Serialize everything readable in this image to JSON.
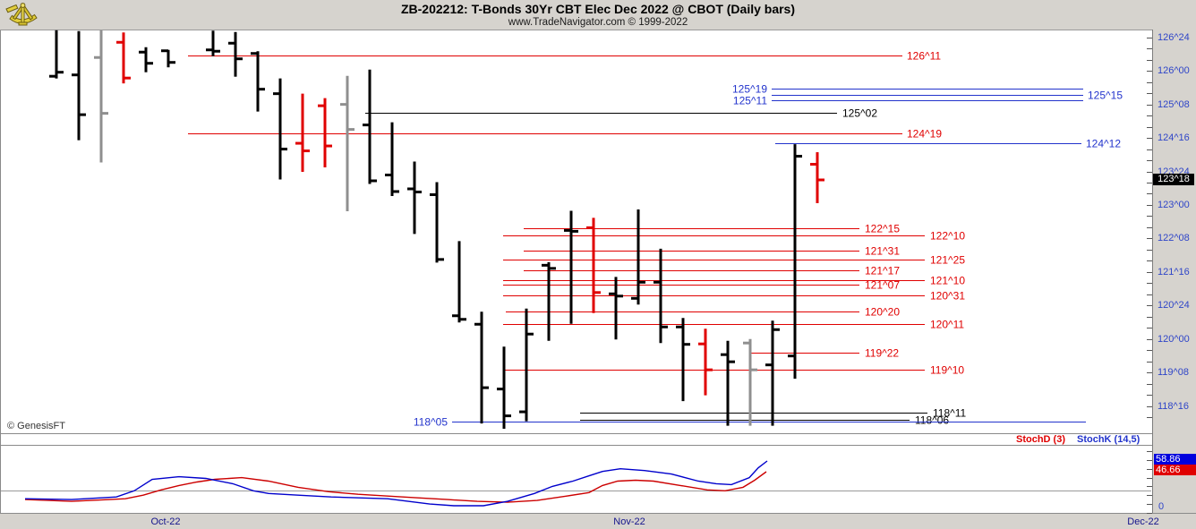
{
  "header": {
    "title": "ZB-202212:  T-Bonds 30Yr CBT Elec Dec 2022 @ CBOT  (Daily bars)",
    "subtitle": "www.TradeNavigator.com © 1999-2022"
  },
  "copyright": "© GenesisFT",
  "current_price_label": "123^18",
  "stoch": {
    "d_label": "StochD (3)",
    "k_label": "StochK (14,5)",
    "k_value": "58.86",
    "d_value": "46.66",
    "zero": "0"
  },
  "colors": {
    "red": "#e00000",
    "blue": "#2233cc",
    "black": "#000000",
    "gray_bar": "#8f8f8f",
    "axis_text": "#2f45c8",
    "date_text": "#14148c",
    "stoch_k": "#0000cc",
    "stoch_d": "#cc0000",
    "k_box_bg": "#0000dd",
    "d_box_bg": "#e00000",
    "chrome": "#d6d3ce",
    "panel": "#ffffff",
    "border": "#808080",
    "current_price_bg": "#000000",
    "gridline": "#9a9a9a"
  },
  "chart_data": {
    "type": "ohlc",
    "title": "ZB-202212:  T-Bonds 30Yr CBT Elec Dec 2022 @ CBOT  (Daily bars)",
    "price_unit": "points and 32nds (e.g. 123^18 = 123 + 18/32)",
    "price_axis_labels": [
      [
        "126^24",
        126.75
      ],
      [
        "126^00",
        126.0
      ],
      [
        "125^08",
        125.25
      ],
      [
        "124^16",
        124.5
      ],
      [
        "123^24",
        123.75
      ],
      [
        "123^00",
        123.0
      ],
      [
        "122^08",
        122.25
      ],
      [
        "121^16",
        121.5
      ],
      [
        "120^24",
        120.75
      ],
      [
        "120^00",
        120.0
      ],
      [
        "119^08",
        119.25
      ],
      [
        "118^16",
        118.5
      ]
    ],
    "bars_format": [
      "x",
      "open",
      "high",
      "low",
      "close",
      "color(k=black,r=red,g=gray)"
    ],
    "bars": [
      [
        63,
        125.88,
        126.91,
        125.83,
        125.97,
        "k"
      ],
      [
        88,
        125.91,
        126.89,
        124.45,
        125.02,
        "k"
      ],
      [
        113,
        126.3,
        126.91,
        123.95,
        125.05,
        "g"
      ],
      [
        138,
        126.64,
        126.86,
        125.72,
        125.84,
        "r"
      ],
      [
        163,
        126.42,
        126.53,
        125.97,
        126.17,
        "k"
      ],
      [
        188,
        126.45,
        126.47,
        126.08,
        126.19,
        "k"
      ],
      [
        238,
        126.47,
        126.9,
        126.33,
        126.44,
        "k"
      ],
      [
        263,
        126.62,
        126.87,
        125.87,
        126.27,
        "k"
      ],
      [
        288,
        126.39,
        126.44,
        125.09,
        125.59,
        "k"
      ],
      [
        313,
        125.49,
        125.83,
        123.57,
        124.25,
        "k"
      ],
      [
        338,
        124.38,
        125.49,
        123.74,
        124.21,
        "r"
      ],
      [
        363,
        125.22,
        125.39,
        123.84,
        124.32,
        "r"
      ],
      [
        388,
        125.25,
        125.89,
        122.86,
        124.69,
        "g"
      ],
      [
        413,
        124.79,
        126.03,
        123.47,
        123.54,
        "k"
      ],
      [
        438,
        123.67,
        124.85,
        123.2,
        123.3,
        "k"
      ],
      [
        463,
        123.36,
        123.97,
        122.35,
        123.29,
        "k"
      ],
      [
        488,
        123.23,
        123.51,
        121.71,
        121.78,
        "k"
      ],
      [
        513,
        120.52,
        122.19,
        120.37,
        120.44,
        "k"
      ],
      [
        538,
        120.33,
        120.61,
        118.11,
        118.91,
        "k"
      ],
      [
        563,
        118.88,
        119.83,
        117.99,
        118.28,
        "k"
      ],
      [
        588,
        118.37,
        120.68,
        118.16,
        120.11,
        "k"
      ],
      [
        613,
        121.65,
        121.72,
        119.96,
        121.58,
        "k"
      ],
      [
        638,
        122.43,
        122.87,
        120.34,
        122.41,
        "k"
      ],
      [
        663,
        122.49,
        122.71,
        120.58,
        121.04,
        "r"
      ],
      [
        688,
        121.01,
        121.39,
        119.99,
        120.96,
        "k"
      ],
      [
        713,
        120.91,
        122.9,
        120.77,
        121.27,
        "k"
      ],
      [
        738,
        121.27,
        122.02,
        119.91,
        120.27,
        "k"
      ],
      [
        763,
        120.27,
        120.47,
        118.61,
        119.88,
        "k"
      ],
      [
        788,
        119.89,
        120.23,
        118.74,
        119.31,
        "r"
      ],
      [
        813,
        119.65,
        119.96,
        118.06,
        119.49,
        "k"
      ],
      [
        838,
        119.91,
        120.0,
        118.06,
        119.31,
        "g"
      ],
      [
        863,
        119.42,
        120.41,
        118.06,
        120.21,
        "k"
      ],
      [
        888,
        119.62,
        124.36,
        119.11,
        124.09,
        "k"
      ],
      [
        913,
        123.91,
        124.18,
        123.04,
        123.56,
        "r"
      ]
    ],
    "levels_format": [
      "label",
      "value",
      "color(r|b|k)",
      "x1",
      "x2",
      "label_x",
      "anchor"
    ],
    "levels": [
      [
        "126^11",
        126.34375,
        "r",
        210,
        1008,
        1013,
        "start"
      ],
      [
        "125^19",
        125.59375,
        "b",
        862,
        1210,
        857,
        "end"
      ],
      [
        "125^15",
        125.46875,
        "b",
        862,
        1210,
        1215,
        "start"
      ],
      [
        "125^11",
        125.34375,
        "b",
        862,
        1210,
        857,
        "end"
      ],
      [
        "125^02",
        125.0625,
        "k",
        408,
        935,
        941,
        "start"
      ],
      [
        "124^19",
        124.59375,
        "r",
        210,
        1008,
        1013,
        "start"
      ],
      [
        "124^12",
        124.375,
        "b",
        866,
        1208,
        1213,
        "start"
      ],
      [
        "122^15",
        122.46875,
        "r",
        585,
        960,
        966,
        "start"
      ],
      [
        "122^10",
        122.3125,
        "r",
        562,
        1033,
        1039,
        "start"
      ],
      [
        "121^31",
        121.96875,
        "r",
        585,
        960,
        966,
        "start"
      ],
      [
        "121^25",
        121.78125,
        "r",
        562,
        1033,
        1039,
        "start"
      ],
      [
        "121^17",
        121.53125,
        "r",
        585,
        960,
        966,
        "start"
      ],
      [
        "121^10",
        121.3125,
        "r",
        562,
        1033,
        1039,
        "start"
      ],
      [
        "121^07",
        121.21875,
        "r",
        562,
        960,
        966,
        "start"
      ],
      [
        "120^31",
        120.96875,
        "r",
        562,
        1033,
        1039,
        "start"
      ],
      [
        "120^20",
        120.625,
        "r",
        565,
        960,
        966,
        "start"
      ],
      [
        "120^11",
        120.34375,
        "r",
        562,
        1033,
        1039,
        "start"
      ],
      [
        "119^22",
        119.6875,
        "r",
        837,
        960,
        966,
        "start"
      ],
      [
        "119^10",
        119.3125,
        "r",
        562,
        1033,
        1039,
        "start"
      ],
      [
        "118^11",
        118.34375,
        "k",
        648,
        1036,
        1042,
        "start"
      ],
      [
        "118^06",
        118.1875,
        "k",
        648,
        1016,
        1022,
        "start"
      ],
      [
        "118^05",
        118.15625,
        "b",
        505,
        1213,
        500,
        "end"
      ]
    ],
    "current_price": {
      "label": "123^18",
      "value": 123.5625
    },
    "stochastic": {
      "range": [
        0,
        100
      ],
      "gridline": 25,
      "k": {
        "name": "StochK (14,5)",
        "last": 58.86,
        "points": [
          [
            28,
            16
          ],
          [
            80,
            15
          ],
          [
            130,
            18
          ],
          [
            150,
            25
          ],
          [
            170,
            38
          ],
          [
            200,
            41
          ],
          [
            230,
            39
          ],
          [
            260,
            33
          ],
          [
            283,
            25
          ],
          [
            300,
            22
          ],
          [
            333,
            20
          ],
          [
            370,
            18
          ],
          [
            433,
            16
          ],
          [
            480,
            10
          ],
          [
            507,
            8
          ],
          [
            540,
            8
          ],
          [
            567,
            13
          ],
          [
            597,
            22
          ],
          [
            617,
            30
          ],
          [
            640,
            36
          ],
          [
            658,
            42
          ],
          [
            673,
            47
          ],
          [
            693,
            50
          ],
          [
            720,
            48
          ],
          [
            750,
            44
          ],
          [
            780,
            36
          ],
          [
            800,
            33
          ],
          [
            817,
            32
          ],
          [
            837,
            40
          ],
          [
            847,
            51
          ],
          [
            857,
            58.86
          ]
        ]
      },
      "d": {
        "name": "StochD (3)",
        "last": 46.66,
        "points": [
          [
            28,
            15
          ],
          [
            80,
            13
          ],
          [
            140,
            16
          ],
          [
            160,
            20
          ],
          [
            180,
            26
          ],
          [
            200,
            31
          ],
          [
            220,
            35
          ],
          [
            240,
            38
          ],
          [
            270,
            40
          ],
          [
            300,
            36
          ],
          [
            333,
            29
          ],
          [
            367,
            24
          ],
          [
            400,
            21
          ],
          [
            433,
            19
          ],
          [
            467,
            17
          ],
          [
            500,
            15
          ],
          [
            533,
            13
          ],
          [
            567,
            12
          ],
          [
            600,
            14
          ],
          [
            633,
            19
          ],
          [
            658,
            23
          ],
          [
            673,
            31
          ],
          [
            690,
            36
          ],
          [
            710,
            37
          ],
          [
            730,
            36
          ],
          [
            760,
            31
          ],
          [
            790,
            26
          ],
          [
            810,
            25
          ],
          [
            830,
            29
          ],
          [
            843,
            37
          ],
          [
            856,
            46.66
          ]
        ]
      }
    },
    "time_axis": [
      [
        "Oct-22",
        185
      ],
      [
        "Nov-22",
        703
      ],
      [
        "Dec-22",
        1277
      ]
    ]
  }
}
